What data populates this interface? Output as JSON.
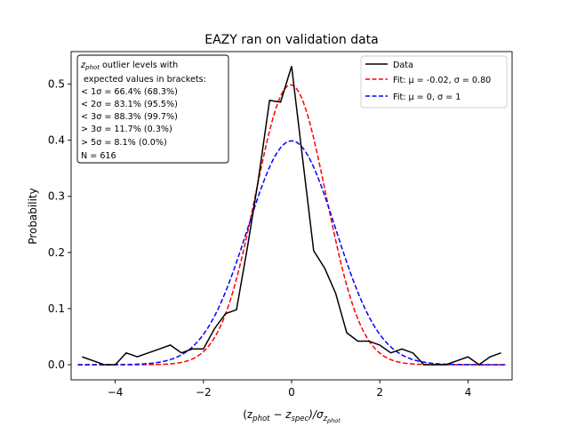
{
  "chart_data": {
    "type": "line",
    "title": "EAZY ran on validation data",
    "xlabel_parts": [
      "(z",
      "phot",
      " − z",
      "spec",
      ")/σ",
      "z",
      "phot"
    ],
    "ylabel": "Probability",
    "xlim": [
      -5.0,
      5.0
    ],
    "ylim": [
      -0.027,
      0.558
    ],
    "xticks": [
      -4,
      -2,
      0,
      2,
      4
    ],
    "xtick_labels": [
      "−4",
      "−2",
      "0",
      "2",
      "4"
    ],
    "yticks": [
      0.0,
      0.1,
      0.2,
      0.3,
      0.4,
      0.5
    ],
    "ytick_labels": [
      "0.0",
      "0.1",
      "0.2",
      "0.3",
      "0.4",
      "0.5"
    ],
    "series": [
      {
        "name": "Data",
        "color": "#000000",
        "style": "solid",
        "x": [
          -4.75,
          -4.5,
          -4.25,
          -4.0,
          -3.75,
          -3.5,
          -3.25,
          -3.0,
          -2.75,
          -2.5,
          -2.25,
          -2.0,
          -1.75,
          -1.5,
          -1.25,
          -1.0,
          -0.75,
          -0.5,
          -0.25,
          0.0,
          0.25,
          0.5,
          0.75,
          1.0,
          1.25,
          1.5,
          1.75,
          2.0,
          2.25,
          2.5,
          2.75,
          3.0,
          3.25,
          3.5,
          3.75,
          4.0,
          4.25,
          4.5,
          4.75
        ],
        "y": [
          0.014,
          0.007,
          0.0,
          0.0,
          0.021,
          0.014,
          0.021,
          0.028,
          0.035,
          0.021,
          0.028,
          0.028,
          0.064,
          0.091,
          0.098,
          0.21,
          0.332,
          0.471,
          0.468,
          0.532,
          0.367,
          0.203,
          0.172,
          0.127,
          0.057,
          0.042,
          0.042,
          0.035,
          0.021,
          0.028,
          0.021,
          0.0,
          0.0,
          0.0,
          0.007,
          0.014,
          0.0,
          0.014,
          0.021
        ]
      },
      {
        "name": "Fit: μ = -0.02, σ = 0.80",
        "color": "#ff0000",
        "style": "dashed",
        "mu": -0.02,
        "sigma": 0.8
      },
      {
        "name": "Fit: μ = 0, σ = 1",
        "color": "#0000ff",
        "style": "dashed",
        "mu": 0,
        "sigma": 1
      }
    ],
    "legend_position": "top-right",
    "annotation": {
      "line1_var": "z",
      "line1_sub": "phot",
      "line1_rest": " outlier levels with",
      "lines": [
        " expected values in brackets:",
        "< 1σ = 66.4% (68.3%)",
        "< 2σ = 83.1% (95.5%)",
        "< 3σ = 88.3% (99.7%)",
        "> 3σ = 11.7% (0.3%)",
        "> 5σ = 8.1% (0.0%)",
        "N = 616"
      ],
      "position": "top-left"
    },
    "grid": false
  }
}
